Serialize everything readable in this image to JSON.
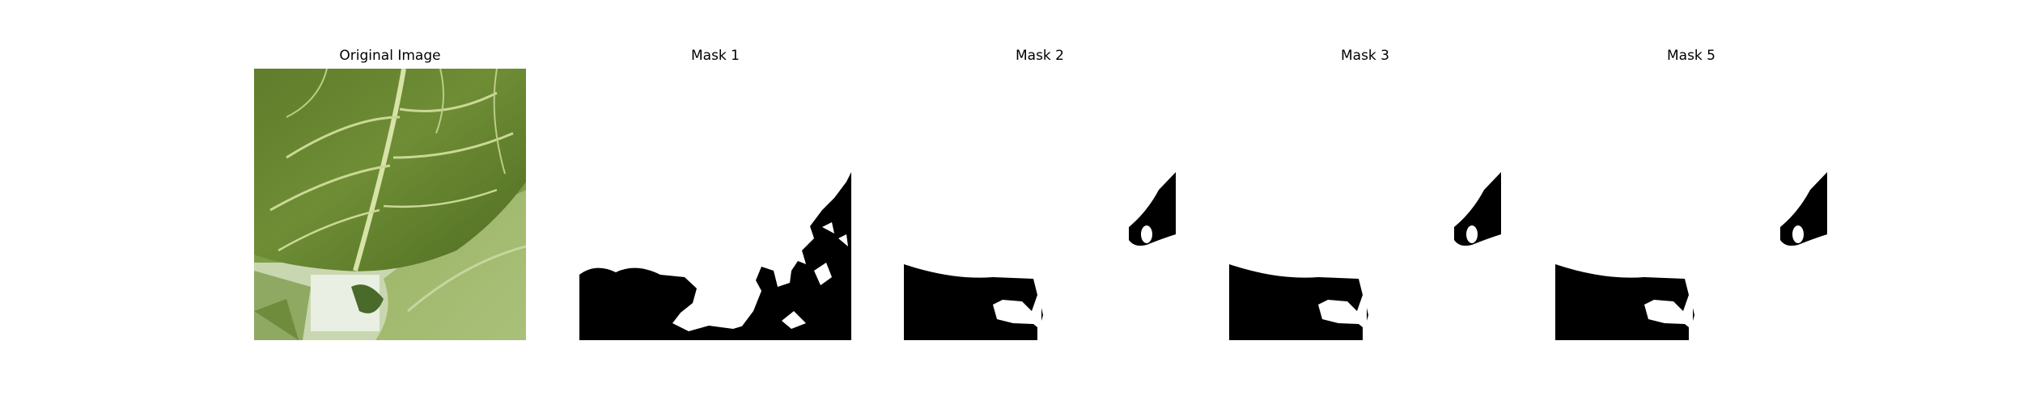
{
  "figure": {
    "panels": [
      {
        "title": "Original Image",
        "kind": "photo",
        "subject": "leaf-photo"
      },
      {
        "title": "Mask 1",
        "kind": "mask",
        "mask_id": 1
      },
      {
        "title": "Mask 2",
        "kind": "mask",
        "mask_id": 2
      },
      {
        "title": "Mask 3",
        "kind": "mask",
        "mask_id": 3
      },
      {
        "title": "Mask 5",
        "kind": "mask",
        "mask_id": 5
      }
    ],
    "colors": {
      "background": "#ffffff",
      "mask_foreground": "#000000",
      "mask_background": "#ffffff",
      "leaf_dark": "#4f6e22",
      "leaf_mid": "#6f8d35",
      "leaf_light": "#9cb565",
      "vein": "#d7e3a7"
    }
  }
}
